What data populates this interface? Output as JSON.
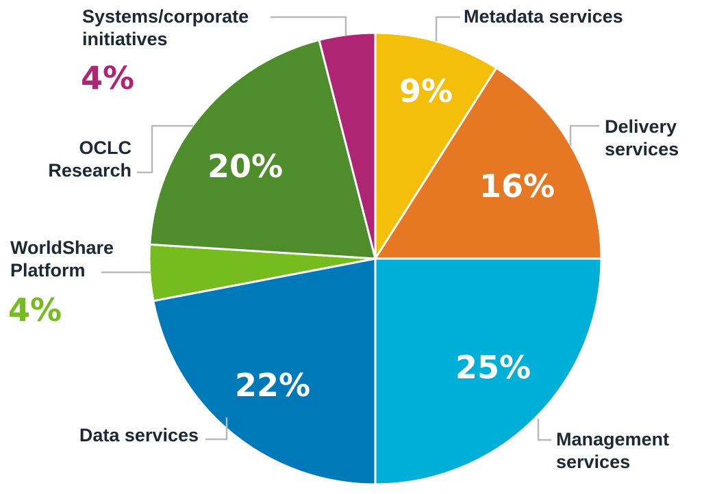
{
  "chart_data": {
    "type": "pie",
    "title": "",
    "start": "12 o'clock",
    "direction": "clockwise",
    "slices": [
      {
        "label": "Metadata services",
        "lines": [
          "Metadata services"
        ],
        "value": 9,
        "display": "9%",
        "color": "#f4bf0a",
        "value_position": "inside"
      },
      {
        "label": "Delivery services",
        "lines": [
          "Delivery",
          "services"
        ],
        "value": 16,
        "display": "16%",
        "color": "#e77823",
        "value_position": "inside"
      },
      {
        "label": "Management services",
        "lines": [
          "Management",
          "services"
        ],
        "value": 25,
        "display": "25%",
        "color": "#00afd8",
        "value_position": "inside"
      },
      {
        "label": "Data services",
        "lines": [
          "Data services"
        ],
        "value": 22,
        "display": "22%",
        "color": "#0079b8",
        "value_position": "inside"
      },
      {
        "label": "WorldShare Platform",
        "lines": [
          "WorldShare",
          "Platform"
        ],
        "value": 4,
        "display": "4%",
        "color": "#77bc1f",
        "value_position": "outside"
      },
      {
        "label": "OCLC Research",
        "lines": [
          "OCLC",
          "Research"
        ],
        "value": 20,
        "display": "20%",
        "color": "#4e8c2c",
        "value_position": "inside"
      },
      {
        "label": "Systems/corporate initiatives",
        "lines": [
          "Systems/corporate",
          "initiatives"
        ],
        "value": 4,
        "display": "4%",
        "color": "#ae2573",
        "value_position": "outside"
      }
    ],
    "legend": "none (direct labels with leader lines)"
  }
}
